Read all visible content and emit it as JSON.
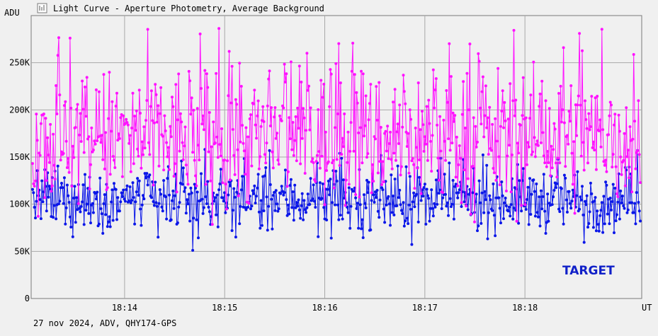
{
  "header": {
    "title": "Light Curve - Aperture Photometry, Average Background",
    "icon": "light-curve-icon"
  },
  "footer": {
    "info": "27 nov 2024, ADV, QHY174-GPS"
  },
  "colors": {
    "background": "#f0f0f0",
    "grid": "#a8a8a8",
    "series_target": "#0a16e8",
    "series_comparison": "#ff12ff",
    "target_label": "#1020c8"
  },
  "chart_data": {
    "type": "line",
    "title": "Light Curve - Aperture Photometry, Average Background",
    "xlabel": "UT",
    "ylabel": "ADU",
    "ylim": [
      0,
      300000
    ],
    "yticks": [
      {
        "value": 0,
        "label": "0"
      },
      {
        "value": 50000,
        "label": "50K"
      },
      {
        "value": 100000,
        "label": "100K"
      },
      {
        "value": 150000,
        "label": "150K"
      },
      {
        "value": 200000,
        "label": "200K"
      },
      {
        "value": 250000,
        "label": "250K"
      }
    ],
    "xticks": [
      "18:14",
      "18:15",
      "18:16",
      "18:17",
      "18:18"
    ],
    "x_range": [
      "18:13:04",
      "18:19:10"
    ],
    "grid": true,
    "annotation": "TARGET",
    "series": [
      {
        "role": "target",
        "typical_min": 60000,
        "typical_max": 150000,
        "mean": 105000,
        "points": 650
      },
      {
        "role": "comparison",
        "typical_min": 70000,
        "typical_max": 290000,
        "mean": 170000,
        "points": 650
      }
    ]
  }
}
